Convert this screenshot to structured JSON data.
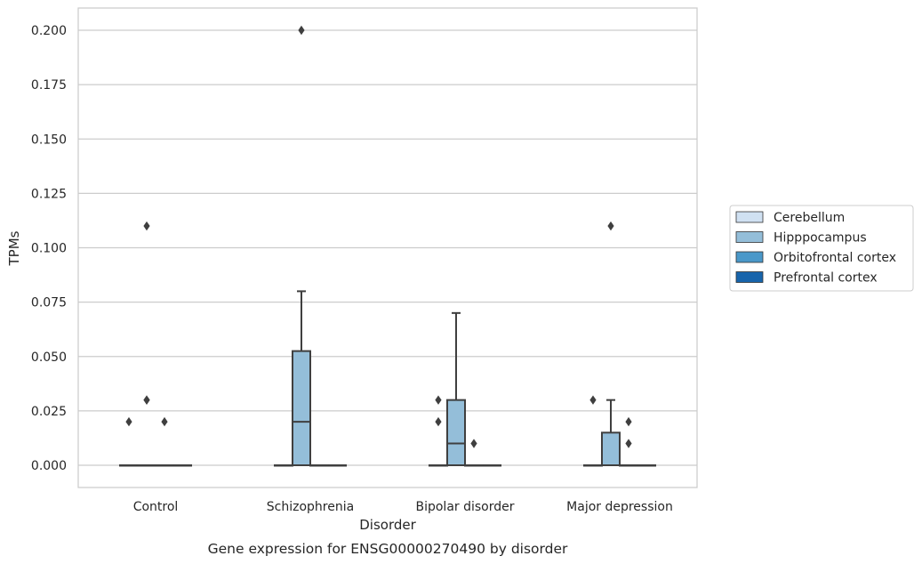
{
  "chart_data": {
    "type": "box",
    "title": "",
    "caption": "Gene expression for ENSG00000270490 by disorder",
    "xlabel": "Disorder",
    "ylabel": "TPMs",
    "ylim": [
      -0.01,
      0.21
    ],
    "yticks": [
      "0.000",
      "0.025",
      "0.050",
      "0.075",
      "0.100",
      "0.125",
      "0.150",
      "0.175",
      "0.200"
    ],
    "grid": true,
    "legend_position": "right",
    "categories": [
      "Control",
      "Schizophrenia",
      "Bipolar disorder",
      "Major depression"
    ],
    "series": [
      {
        "name": "Cerebellum",
        "color": "#d0e1f2",
        "boxes": [
          {
            "category": "Control",
            "q1": 0,
            "median": 0,
            "q3": 0,
            "whisker_low": 0,
            "whisker_high": 0,
            "outliers": []
          },
          {
            "category": "Schizophrenia",
            "q1": 0,
            "median": 0,
            "q3": 0,
            "whisker_low": 0,
            "whisker_high": 0,
            "outliers": []
          },
          {
            "category": "Bipolar disorder",
            "q1": 0,
            "median": 0,
            "q3": 0,
            "whisker_low": 0,
            "whisker_high": 0,
            "outliers": []
          },
          {
            "category": "Major depression",
            "q1": 0,
            "median": 0,
            "q3": 0,
            "whisker_low": 0,
            "whisker_high": 0,
            "outliers": []
          }
        ]
      },
      {
        "name": "Hipppocampus",
        "color": "#94bed9",
        "boxes": [
          {
            "category": "Control",
            "q1": 0,
            "median": 0,
            "q3": 0,
            "whisker_low": 0,
            "whisker_high": 0,
            "outliers": [
              0.11,
              0.03,
              0.03
            ]
          },
          {
            "category": "Schizophrenia",
            "q1": 0,
            "median": 0.02,
            "q3": 0.0525,
            "whisker_low": 0,
            "whisker_high": 0.08,
            "outliers": [
              0.2
            ]
          },
          {
            "category": "Bipolar disorder",
            "q1": 0,
            "median": 0.01,
            "q3": 0.03,
            "whisker_low": 0,
            "whisker_high": 0.07,
            "outliers": []
          },
          {
            "category": "Major depression",
            "q1": 0,
            "median": 0,
            "q3": 0.015,
            "whisker_low": 0,
            "whisker_high": 0.03,
            "outliers": [
              0.11
            ]
          }
        ]
      },
      {
        "name": "Orbitofrontal cortex",
        "color": "#4a98c9",
        "boxes": [
          {
            "category": "Control",
            "q1": 0,
            "median": 0,
            "q3": 0,
            "whisker_low": 0,
            "whisker_high": 0,
            "outliers": [
              0.02
            ]
          },
          {
            "category": "Schizophrenia",
            "q1": 0,
            "median": 0,
            "q3": 0,
            "whisker_low": 0,
            "whisker_high": 0,
            "outliers": []
          },
          {
            "category": "Bipolar disorder",
            "q1": 0,
            "median": 0,
            "q3": 0,
            "whisker_low": 0,
            "whisker_high": 0,
            "outliers": [
              0.01
            ]
          },
          {
            "category": "Major depression",
            "q1": 0,
            "median": 0,
            "q3": 0,
            "whisker_low": 0,
            "whisker_high": 0,
            "outliers": [
              0.02,
              0.01
            ]
          }
        ]
      },
      {
        "name": "Prefrontal cortex",
        "color": "#1764ab",
        "boxes": [
          {
            "category": "Control",
            "q1": 0,
            "median": 0,
            "q3": 0,
            "whisker_low": 0,
            "whisker_high": 0,
            "outliers": []
          },
          {
            "category": "Schizophrenia",
            "q1": 0,
            "median": 0,
            "q3": 0,
            "whisker_low": 0,
            "whisker_high": 0,
            "outliers": []
          },
          {
            "category": "Bipolar disorder",
            "q1": 0,
            "median": 0,
            "q3": 0,
            "whisker_low": 0,
            "whisker_high": 0,
            "outliers": []
          },
          {
            "category": "Major depression",
            "q1": 0,
            "median": 0,
            "q3": 0,
            "whisker_low": 0,
            "whisker_high": 0,
            "outliers": []
          }
        ]
      }
    ],
    "extra_outliers": [
      {
        "category": "Control",
        "series_name": "Cerebellum",
        "value": 0.02
      },
      {
        "category": "Bipolar disorder",
        "series_name": "Cerebellum",
        "value": 0.03
      },
      {
        "category": "Bipolar disorder",
        "series_name": "Cerebellum",
        "value": 0.02
      },
      {
        "category": "Major depression",
        "series_name": "Cerebellum",
        "value": 0.03
      }
    ]
  }
}
